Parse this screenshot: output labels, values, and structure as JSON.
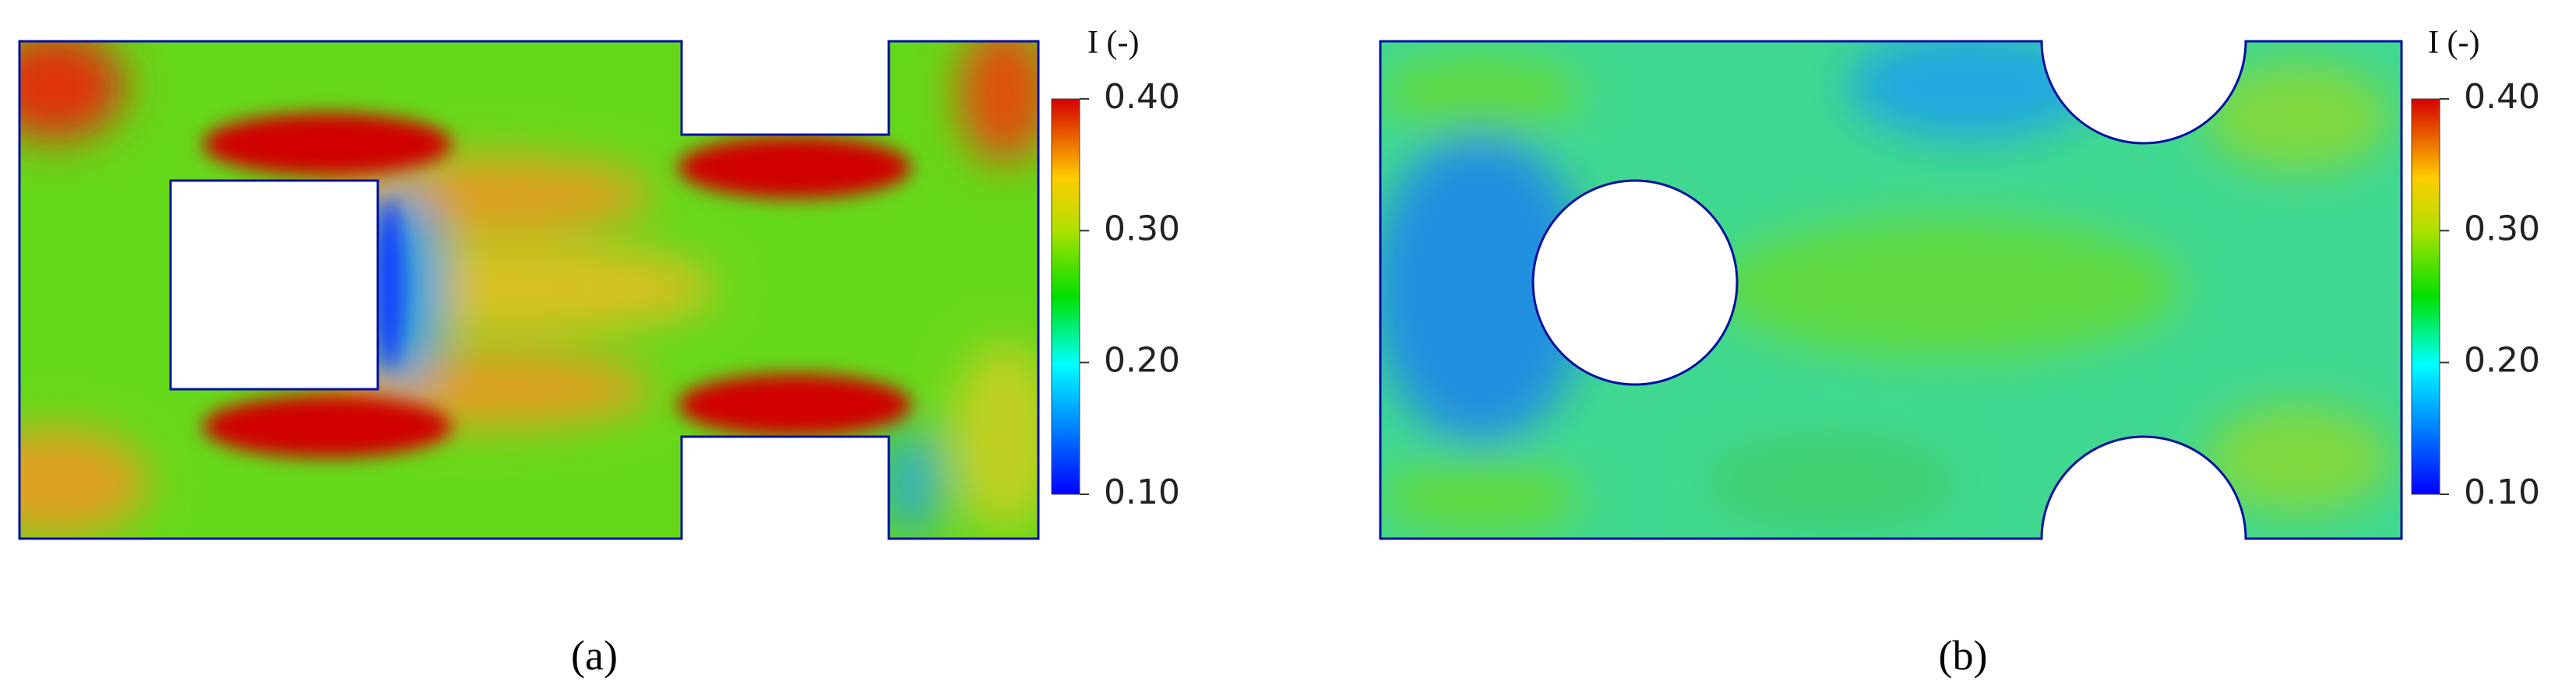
{
  "figure": {
    "panels": [
      {
        "label": "(a)",
        "colorbar": {
          "title": "I  (-)",
          "range": [
            0.1,
            0.4
          ],
          "ticks": [
            {
              "value": 0.4,
              "label": "0.40"
            },
            {
              "value": 0.3,
              "label": "0.30"
            },
            {
              "value": 0.2,
              "label": "0.20"
            },
            {
              "value": 0.1,
              "label": "0.10"
            }
          ]
        }
      },
      {
        "label": "(b)",
        "colorbar": {
          "title": "I  (-)",
          "range": [
            0.1,
            0.4
          ],
          "ticks": [
            {
              "value": 0.4,
              "label": "0.40"
            },
            {
              "value": 0.3,
              "label": "0.30"
            },
            {
              "value": 0.2,
              "label": "0.20"
            },
            {
              "value": 0.1,
              "label": "0.10"
            }
          ]
        }
      }
    ]
  }
}
